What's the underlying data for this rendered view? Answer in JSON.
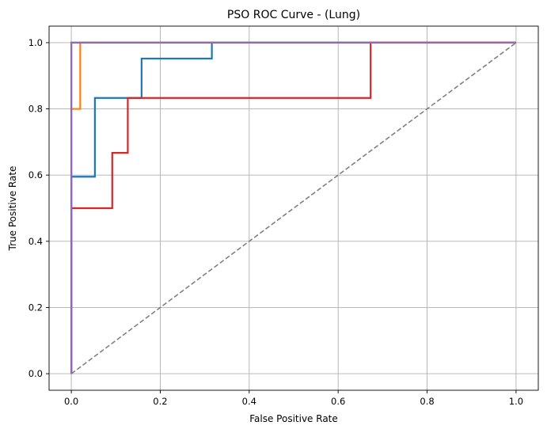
{
  "chart_data": {
    "type": "line",
    "title": "PSO ROC Curve - (Lung)",
    "xlabel": "False Positive Rate",
    "ylabel": "True Positive Rate",
    "xlim": [
      -0.05,
      1.05
    ],
    "ylim": [
      -0.05,
      1.05
    ],
    "xticks": [
      0.0,
      0.2,
      0.4,
      0.6,
      0.8,
      1.0
    ],
    "yticks": [
      0.0,
      0.2,
      0.4,
      0.6,
      0.8,
      1.0
    ],
    "xtick_labels": [
      "0.0",
      "0.2",
      "0.4",
      "0.6",
      "0.8",
      "1.0"
    ],
    "ytick_labels": [
      "0.0",
      "0.2",
      "0.4",
      "0.6",
      "0.8",
      "1.0"
    ],
    "grid": true,
    "reference_line": {
      "x": [
        0,
        1
      ],
      "y": [
        0,
        1
      ],
      "color": "#808080",
      "style": "dashed"
    },
    "series": [
      {
        "color": "#1f77b4",
        "x": [
          0,
          0,
          0.053,
          0.053,
          0.158,
          0.158,
          0.316,
          0.316,
          1.0
        ],
        "y": [
          0,
          0.595,
          0.595,
          0.833,
          0.833,
          0.952,
          0.952,
          1.0,
          1.0
        ]
      },
      {
        "color": "#ff7f0e",
        "x": [
          0,
          0,
          0.02,
          0.02,
          1.0
        ],
        "y": [
          0,
          0.8,
          0.8,
          1.0,
          1.0
        ]
      },
      {
        "color": "#2ca02c",
        "x": [
          0,
          0,
          1.0
        ],
        "y": [
          0,
          1.0,
          1.0
        ]
      },
      {
        "color": "#d62728",
        "x": [
          0,
          0,
          0.092,
          0.092,
          0.127,
          0.127,
          0.673,
          0.673,
          1.0
        ],
        "y": [
          0,
          0.5,
          0.5,
          0.667,
          0.667,
          0.833,
          0.833,
          1.0,
          1.0
        ]
      },
      {
        "color": "#9467bd",
        "x": [
          0,
          0,
          1.0
        ],
        "y": [
          0,
          1.0,
          1.0
        ]
      }
    ]
  }
}
